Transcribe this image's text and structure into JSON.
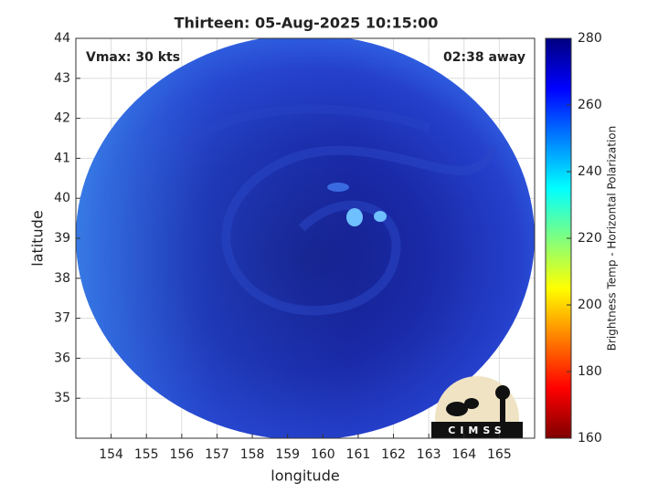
{
  "chart_data": {
    "type": "image",
    "title": "Thirteen: 05-Aug-2025 10:15:00",
    "annotations": [
      "Vmax: 30 kts",
      "02:38 away"
    ],
    "xlabel": "longitude",
    "ylabel": "latitude",
    "xlim": [
      153,
      166
    ],
    "xticks": [
      154,
      155,
      156,
      157,
      158,
      159,
      160,
      161,
      162,
      163,
      164,
      165
    ],
    "ylim": [
      34,
      44
    ],
    "yticks": [
      35,
      36,
      37,
      38,
      39,
      40,
      41,
      42,
      43,
      44
    ],
    "grid": true,
    "colorbar": {
      "label": "Brightness Temp - Horizontal Polarization",
      "lim": [
        160,
        280
      ],
      "ticks": [
        160,
        180,
        200,
        220,
        240,
        260,
        280
      ],
      "colormap": [
        "#7f0000",
        "#ff0000",
        "#ff7f00",
        "#ffff00",
        "#7fff7f",
        "#00ffff",
        "#007fff",
        "#0000ff",
        "#00007f"
      ]
    },
    "logo": "CIMSS"
  }
}
